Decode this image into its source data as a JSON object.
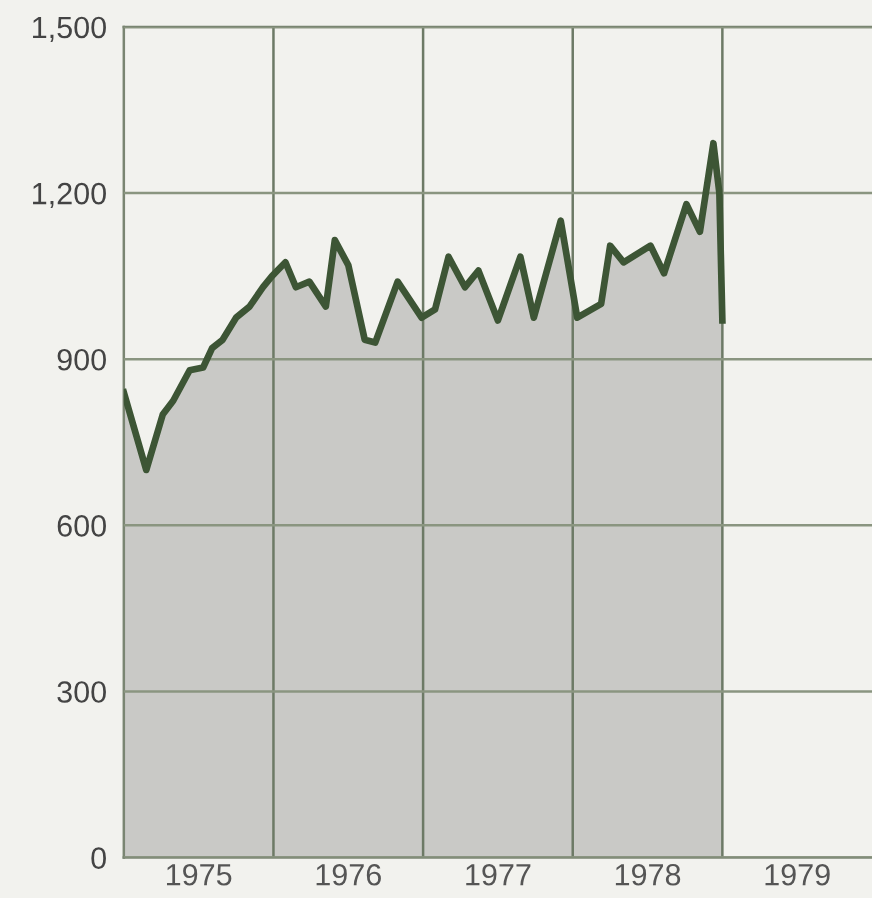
{
  "chart_data": {
    "type": "area",
    "x": [
      1975.0,
      1975.15,
      1975.26,
      1975.33,
      1975.44,
      1975.53,
      1975.59,
      1975.66,
      1975.75,
      1975.84,
      1975.93,
      1975.99,
      1976.08,
      1976.15,
      1976.24,
      1976.35,
      1976.41,
      1976.5,
      1976.61,
      1976.68,
      1976.83,
      1976.99,
      1977.08,
      1977.17,
      1977.28,
      1977.37,
      1977.5,
      1977.65,
      1977.74,
      1977.92,
      1978.03,
      1978.19,
      1978.25,
      1978.34,
      1978.52,
      1978.61,
      1978.76,
      1978.85,
      1978.94,
      1978.98,
      1979.0
    ],
    "series": [
      {
        "color": "#3d5535",
        "values": [
          840,
          700,
          800,
          825,
          880,
          885,
          920,
          935,
          975,
          995,
          1030,
          1050,
          1075,
          1030,
          1040,
          995,
          1115,
          1070,
          935,
          930,
          1040,
          975,
          990,
          1085,
          1030,
          1060,
          970,
          1085,
          975,
          1150,
          975,
          1000,
          1105,
          1075,
          1105,
          1055,
          1180,
          1130,
          1290,
          1200,
          970
        ]
      }
    ],
    "xlim": [
      1975,
      1980
    ],
    "xticks": [
      {
        "value": 1975.5,
        "label": "1975"
      },
      {
        "value": 1976,
        "label": null
      },
      {
        "value": 1976.5,
        "label": "1976"
      },
      {
        "value": 1977,
        "label": null
      },
      {
        "value": 1977.5,
        "label": "1977"
      },
      {
        "value": 1978,
        "label": null
      },
      {
        "value": 1978.5,
        "label": "1978"
      },
      {
        "value": 1979,
        "label": null
      },
      {
        "value": 1979.5,
        "label": "1979"
      }
    ],
    "ylim": [
      0,
      1500
    ],
    "yticks": [
      {
        "value": 0,
        "label": "0"
      },
      {
        "value": 300,
        "label": "300"
      },
      {
        "value": 600,
        "label": "600"
      },
      {
        "value": 900,
        "label": "900"
      },
      {
        "value": 1200,
        "label": "1,200"
      },
      {
        "value": 1500,
        "label": "1,500"
      }
    ],
    "grid": true
  }
}
